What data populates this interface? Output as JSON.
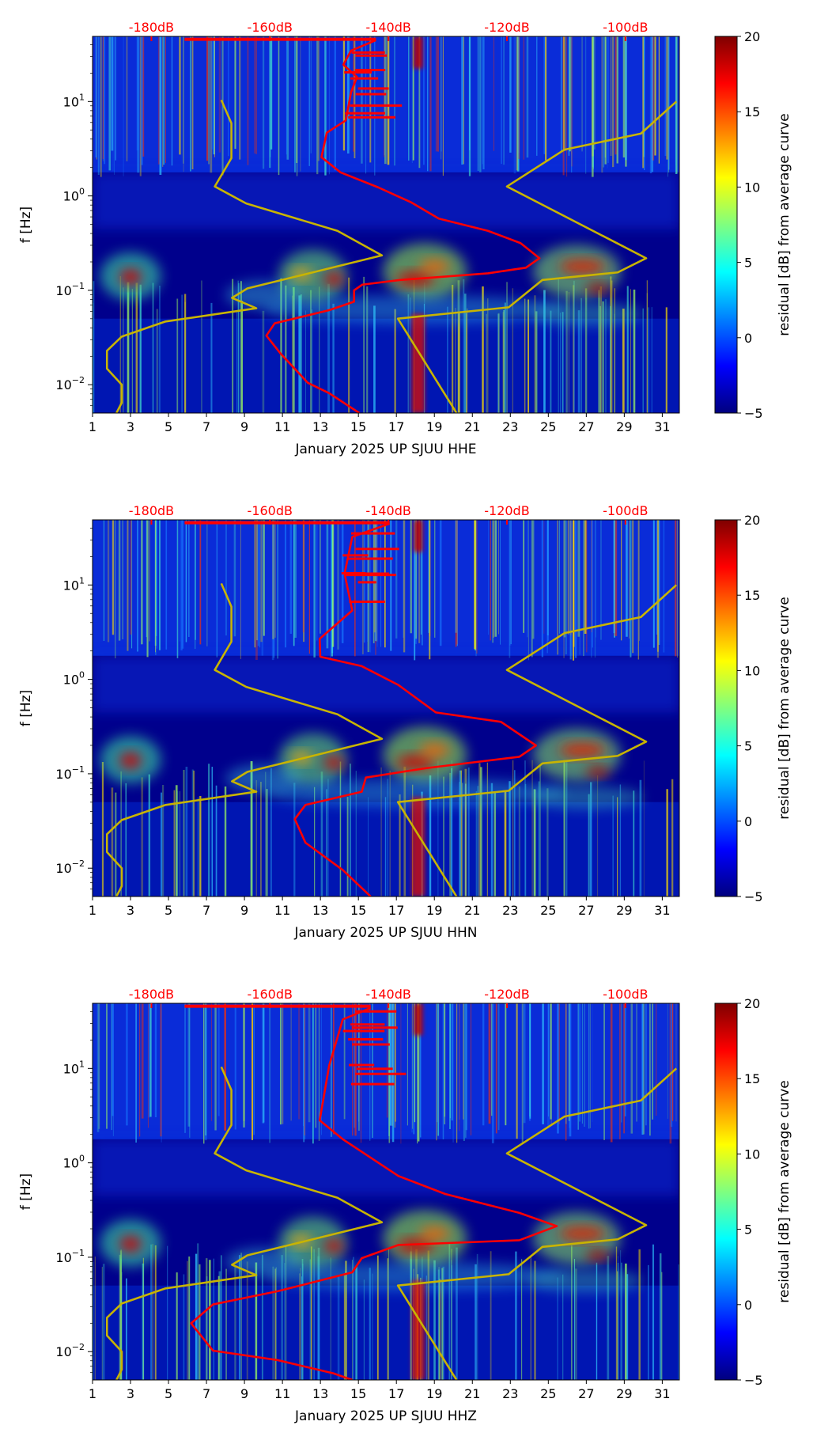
{
  "chart_data": [
    {
      "type": "heatmap",
      "xlabel": "January 2025 UP SJUU  HHE",
      "ylabel": "f [Hz]",
      "xlim": [
        1,
        31.9
      ],
      "x_ticks": [
        1,
        3,
        5,
        7,
        9,
        11,
        13,
        15,
        17,
        19,
        21,
        23,
        25,
        27,
        29,
        31
      ],
      "yscale": "log",
      "ylim_log10": [
        -2.3,
        1.69
      ],
      "y_ticks": [
        {
          "log": -2,
          "base": "10",
          "exp": "−2"
        },
        {
          "log": -1,
          "base": "10",
          "exp": "−1"
        },
        {
          "log": 0,
          "base": "10",
          "exp": "0"
        },
        {
          "log": 1,
          "base": "10",
          "exp": "1"
        }
      ],
      "top_axis": {
        "color": "#ff0000",
        "ticks": [
          -180,
          -160,
          -140,
          -120,
          -100
        ],
        "labels": [
          "-180dB",
          "-160dB",
          "-140dB",
          "-120dB",
          "-100dB"
        ]
      },
      "colorbar": {
        "label": "residual [dB] from average curve",
        "range": [
          -5,
          20
        ],
        "ticks": [
          -5,
          0,
          5,
          10,
          15,
          20
        ],
        "tick_labels": [
          "−5",
          "0",
          "5",
          "10",
          "15",
          "20"
        ],
        "colormap": "jet"
      },
      "psd_curve": {
        "color": "#ff0000",
        "units": "[dB, log10 f]",
        "top_segment": [
          [
            -174.4,
            1.66
          ],
          [
            -142.1,
            1.66
          ]
        ],
        "points": [
          [
            -142.1,
            1.65
          ],
          [
            -146.3,
            1.54
          ],
          [
            -147.6,
            1.39
          ],
          [
            -145.3,
            1.26
          ],
          [
            -146.3,
            1.1
          ],
          [
            -147.2,
            0.8
          ],
          [
            -150.4,
            0.67
          ],
          [
            -151.3,
            0.41
          ],
          [
            -148.1,
            0.25
          ],
          [
            -141.7,
            0.09
          ],
          [
            -136.1,
            -0.07
          ],
          [
            -131.5,
            -0.24
          ],
          [
            -123.2,
            -0.37
          ],
          [
            -117.7,
            -0.5
          ],
          [
            -114.5,
            -0.66
          ],
          [
            -116.8,
            -0.76
          ],
          [
            -123.2,
            -0.82
          ],
          [
            -138.0,
            -0.89
          ],
          [
            -144.4,
            -0.94
          ],
          [
            -145.8,
            -1.0
          ],
          [
            -145.8,
            -1.12
          ],
          [
            -150.0,
            -1.21
          ],
          [
            -159.2,
            -1.35
          ],
          [
            -160.6,
            -1.48
          ],
          [
            -158.2,
            -1.67
          ],
          [
            -153.6,
            -1.98
          ],
          [
            -150.0,
            -2.09
          ],
          [
            -144.9,
            -2.3
          ]
        ]
      },
      "low_noise_model": {
        "color": "#c8b400",
        "points": [
          [
            -168.2,
            1.016
          ],
          [
            -166.5,
            0.77
          ],
          [
            -166.5,
            0.4
          ],
          [
            -169.3,
            0.1
          ],
          [
            -164.0,
            -0.08
          ],
          [
            -148.6,
            -0.37
          ],
          [
            -141.1,
            -0.63
          ],
          [
            -163.8,
            -0.98
          ],
          [
            -166.4,
            -1.08
          ],
          [
            -162.3,
            -1.19
          ],
          [
            -177.6,
            -1.33
          ],
          [
            -185.0,
            -1.49
          ],
          [
            -187.5,
            -1.64
          ],
          [
            -187.5,
            -1.83
          ],
          [
            -185.0,
            -2.0
          ],
          [
            -185.0,
            -2.19
          ],
          [
            -185.9,
            -2.3
          ]
        ]
      },
      "high_noise_model": {
        "color": "#c8b400",
        "points": [
          [
            -91.4,
            1.0
          ],
          [
            -97.4,
            0.66
          ],
          [
            -110.3,
            0.49
          ],
          [
            -120.0,
            0.1
          ],
          [
            -96.5,
            -0.66
          ],
          [
            -101.3,
            -0.81
          ],
          [
            -114.0,
            -0.89
          ],
          [
            -119.7,
            -1.18
          ],
          [
            -138.4,
            -1.3
          ],
          [
            -128.5,
            -2.3
          ]
        ]
      }
    },
    {
      "type": "heatmap",
      "xlabel": "January 2025 UP SJUU  HHN",
      "ylabel": "f [Hz]",
      "xlim": [
        1,
        31.9
      ],
      "x_ticks": [
        1,
        3,
        5,
        7,
        9,
        11,
        13,
        15,
        17,
        19,
        21,
        23,
        25,
        27,
        29,
        31
      ],
      "yscale": "log",
      "ylim_log10": [
        -2.3,
        1.69
      ],
      "y_ticks": [
        {
          "log": -2,
          "base": "10",
          "exp": "−2"
        },
        {
          "log": -1,
          "base": "10",
          "exp": "−1"
        },
        {
          "log": 0,
          "base": "10",
          "exp": "0"
        },
        {
          "log": 1,
          "base": "10",
          "exp": "1"
        }
      ],
      "top_axis": {
        "color": "#ff0000",
        "ticks": [
          -180,
          -160,
          -140,
          -120,
          -100
        ],
        "labels": [
          "-180dB",
          "-160dB",
          "-140dB",
          "-120dB",
          "-100dB"
        ]
      },
      "colorbar": {
        "label": "residual [dB] from average curve",
        "range": [
          -5,
          20
        ],
        "ticks": [
          -5,
          0,
          5,
          10,
          15,
          20
        ],
        "tick_labels": [
          "−5",
          "0",
          "5",
          "10",
          "15",
          "20"
        ],
        "colormap": "jet"
      },
      "psd_curve": {
        "color": "#ff0000",
        "units": "[dB, log10 f]",
        "top_segment": [
          [
            -174.4,
            1.66
          ],
          [
            -139.8,
            1.66
          ]
        ],
        "points": [
          [
            -139.8,
            1.65
          ],
          [
            -146.1,
            1.51
          ],
          [
            -147.4,
            1.12
          ],
          [
            -146.1,
            0.73
          ],
          [
            -151.6,
            0.43
          ],
          [
            -151.5,
            0.24
          ],
          [
            -144.5,
            0.14
          ],
          [
            -138.3,
            -0.06
          ],
          [
            -132.0,
            -0.35
          ],
          [
            -121.0,
            -0.45
          ],
          [
            -115.1,
            -0.7
          ],
          [
            -117.9,
            -0.82
          ],
          [
            -133.6,
            -0.94
          ],
          [
            -143.8,
            -1.04
          ],
          [
            -144.5,
            -1.19
          ],
          [
            -154.0,
            -1.33
          ],
          [
            -155.8,
            -1.48
          ],
          [
            -154.0,
            -1.73
          ],
          [
            -147.7,
            -2.02
          ],
          [
            -143.0,
            -2.3
          ]
        ]
      },
      "low_noise_model": {
        "color": "#c8b400",
        "points": [
          [
            -168.2,
            1.016
          ],
          [
            -166.5,
            0.77
          ],
          [
            -166.5,
            0.4
          ],
          [
            -169.3,
            0.1
          ],
          [
            -164.0,
            -0.08
          ],
          [
            -148.6,
            -0.37
          ],
          [
            -141.1,
            -0.63
          ],
          [
            -163.8,
            -0.98
          ],
          [
            -166.4,
            -1.08
          ],
          [
            -162.3,
            -1.19
          ],
          [
            -177.6,
            -1.33
          ],
          [
            -185.0,
            -1.49
          ],
          [
            -187.5,
            -1.64
          ],
          [
            -187.5,
            -1.83
          ],
          [
            -185.0,
            -2.0
          ],
          [
            -185.0,
            -2.19
          ],
          [
            -185.9,
            -2.3
          ]
        ]
      },
      "high_noise_model": {
        "color": "#c8b400",
        "points": [
          [
            -91.4,
            1.0
          ],
          [
            -97.4,
            0.66
          ],
          [
            -110.3,
            0.49
          ],
          [
            -120.0,
            0.1
          ],
          [
            -96.5,
            -0.66
          ],
          [
            -101.3,
            -0.81
          ],
          [
            -114.0,
            -0.89
          ],
          [
            -119.7,
            -1.18
          ],
          [
            -138.4,
            -1.3
          ],
          [
            -128.5,
            -2.3
          ]
        ]
      }
    },
    {
      "type": "heatmap",
      "xlabel": "January 2025 UP SJUU  HHZ",
      "ylabel": "f [Hz]",
      "xlim": [
        1,
        31.9
      ],
      "x_ticks": [
        1,
        3,
        5,
        7,
        9,
        11,
        13,
        15,
        17,
        19,
        21,
        23,
        25,
        27,
        29,
        31
      ],
      "yscale": "log",
      "ylim_log10": [
        -2.3,
        1.69
      ],
      "y_ticks": [
        {
          "log": -2,
          "base": "10",
          "exp": "−2"
        },
        {
          "log": -1,
          "base": "10",
          "exp": "−1"
        },
        {
          "log": 0,
          "base": "10",
          "exp": "0"
        },
        {
          "log": 1,
          "base": "10",
          "exp": "1"
        }
      ],
      "top_axis": {
        "color": "#ff0000",
        "ticks": [
          -180,
          -160,
          -140,
          -120,
          -100
        ],
        "labels": [
          "-180dB",
          "-160dB",
          "-140dB",
          "-120dB",
          "-100dB"
        ]
      },
      "colorbar": {
        "label": "residual [dB] from average curve",
        "range": [
          -5,
          20
        ],
        "ticks": [
          -5,
          0,
          5,
          10,
          15,
          20
        ],
        "tick_labels": [
          "−5",
          "0",
          "5",
          "10",
          "15",
          "20"
        ],
        "colormap": "jet"
      },
      "psd_curve": {
        "color": "#ff0000",
        "units": "[dB, log10 f]",
        "top_segment": [
          [
            -174.4,
            1.66
          ],
          [
            -143.0,
            1.66
          ]
        ],
        "points": [
          [
            -143.0,
            1.64
          ],
          [
            -147.7,
            1.52
          ],
          [
            -150.0,
            1.03
          ],
          [
            -151.6,
            0.45
          ],
          [
            -147.7,
            0.25
          ],
          [
            -138.3,
            -0.14
          ],
          [
            -130.4,
            -0.33
          ],
          [
            -117.9,
            -0.53
          ],
          [
            -111.6,
            -0.67
          ],
          [
            -117.9,
            -0.82
          ],
          [
            -138.3,
            -0.87
          ],
          [
            -144.5,
            -1.01
          ],
          [
            -146.1,
            -1.16
          ],
          [
            -158.7,
            -1.36
          ],
          [
            -169.6,
            -1.5
          ],
          [
            -173.3,
            -1.7
          ],
          [
            -169.6,
            -1.99
          ],
          [
            -158.7,
            -2.09
          ],
          [
            -149.3,
            -2.23
          ],
          [
            -146.1,
            -2.3
          ]
        ]
      },
      "low_noise_model": {
        "color": "#c8b400",
        "points": [
          [
            -168.2,
            1.016
          ],
          [
            -166.5,
            0.77
          ],
          [
            -166.5,
            0.4
          ],
          [
            -169.3,
            0.1
          ],
          [
            -164.0,
            -0.08
          ],
          [
            -148.6,
            -0.37
          ],
          [
            -141.1,
            -0.63
          ],
          [
            -163.8,
            -0.98
          ],
          [
            -166.4,
            -1.08
          ],
          [
            -162.3,
            -1.19
          ],
          [
            -177.6,
            -1.33
          ],
          [
            -185.0,
            -1.49
          ],
          [
            -187.5,
            -1.64
          ],
          [
            -187.5,
            -1.83
          ],
          [
            -185.0,
            -2.0
          ],
          [
            -185.0,
            -2.19
          ],
          [
            -185.9,
            -2.3
          ]
        ]
      },
      "high_noise_model": {
        "color": "#c8b400",
        "points": [
          [
            -91.4,
            1.0
          ],
          [
            -97.4,
            0.66
          ],
          [
            -110.3,
            0.49
          ],
          [
            -120.0,
            0.1
          ],
          [
            -96.5,
            -0.66
          ],
          [
            -101.3,
            -0.81
          ],
          [
            -114.0,
            -0.89
          ],
          [
            -119.7,
            -1.18
          ],
          [
            -138.4,
            -1.3
          ],
          [
            -128.5,
            -2.3
          ]
        ]
      }
    }
  ]
}
